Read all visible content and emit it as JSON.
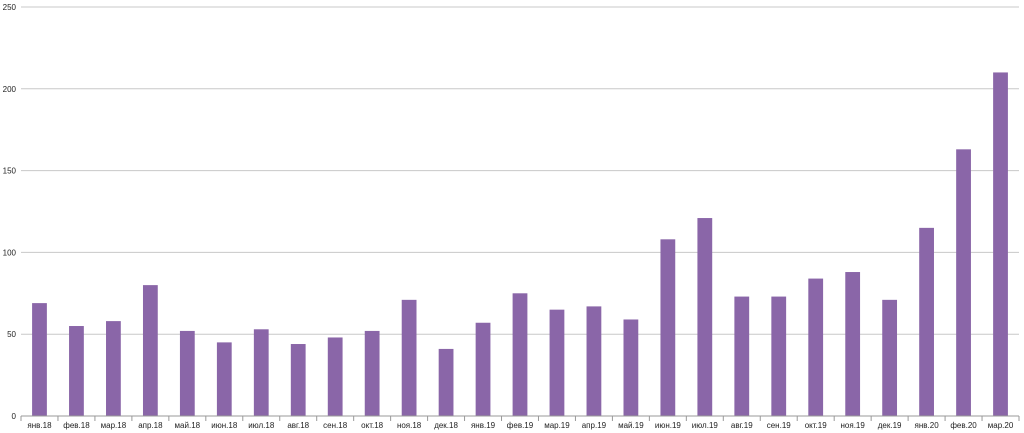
{
  "chart_data": {
    "type": "bar",
    "title": "",
    "xlabel": "",
    "ylabel": "",
    "categories": [
      "янв.18",
      "фев.18",
      "мар.18",
      "апр.18",
      "май.18",
      "июн.18",
      "июл.18",
      "авг.18",
      "сен.18",
      "окт.18",
      "ноя.18",
      "дек.18",
      "янв.19",
      "фев.19",
      "мар.19",
      "апр.19",
      "май.19",
      "июн.19",
      "июл.19",
      "авг.19",
      "сен.19",
      "окт.19",
      "ноя.19",
      "дек.19",
      "янв.20",
      "фев.20",
      "мар.20"
    ],
    "values": [
      69,
      55,
      58,
      80,
      52,
      45,
      53,
      44,
      48,
      52,
      71,
      41,
      57,
      75,
      65,
      67,
      59,
      108,
      121,
      73,
      73,
      84,
      88,
      71,
      115,
      163,
      210
    ],
    "ylim": [
      0,
      250
    ],
    "yticks": [
      0,
      50,
      100,
      150,
      200,
      250
    ],
    "grid": true,
    "legend": "none",
    "bar_color": "#8a66a8",
    "grid_color": "#c8c8c8",
    "axis_color": "#999999"
  }
}
